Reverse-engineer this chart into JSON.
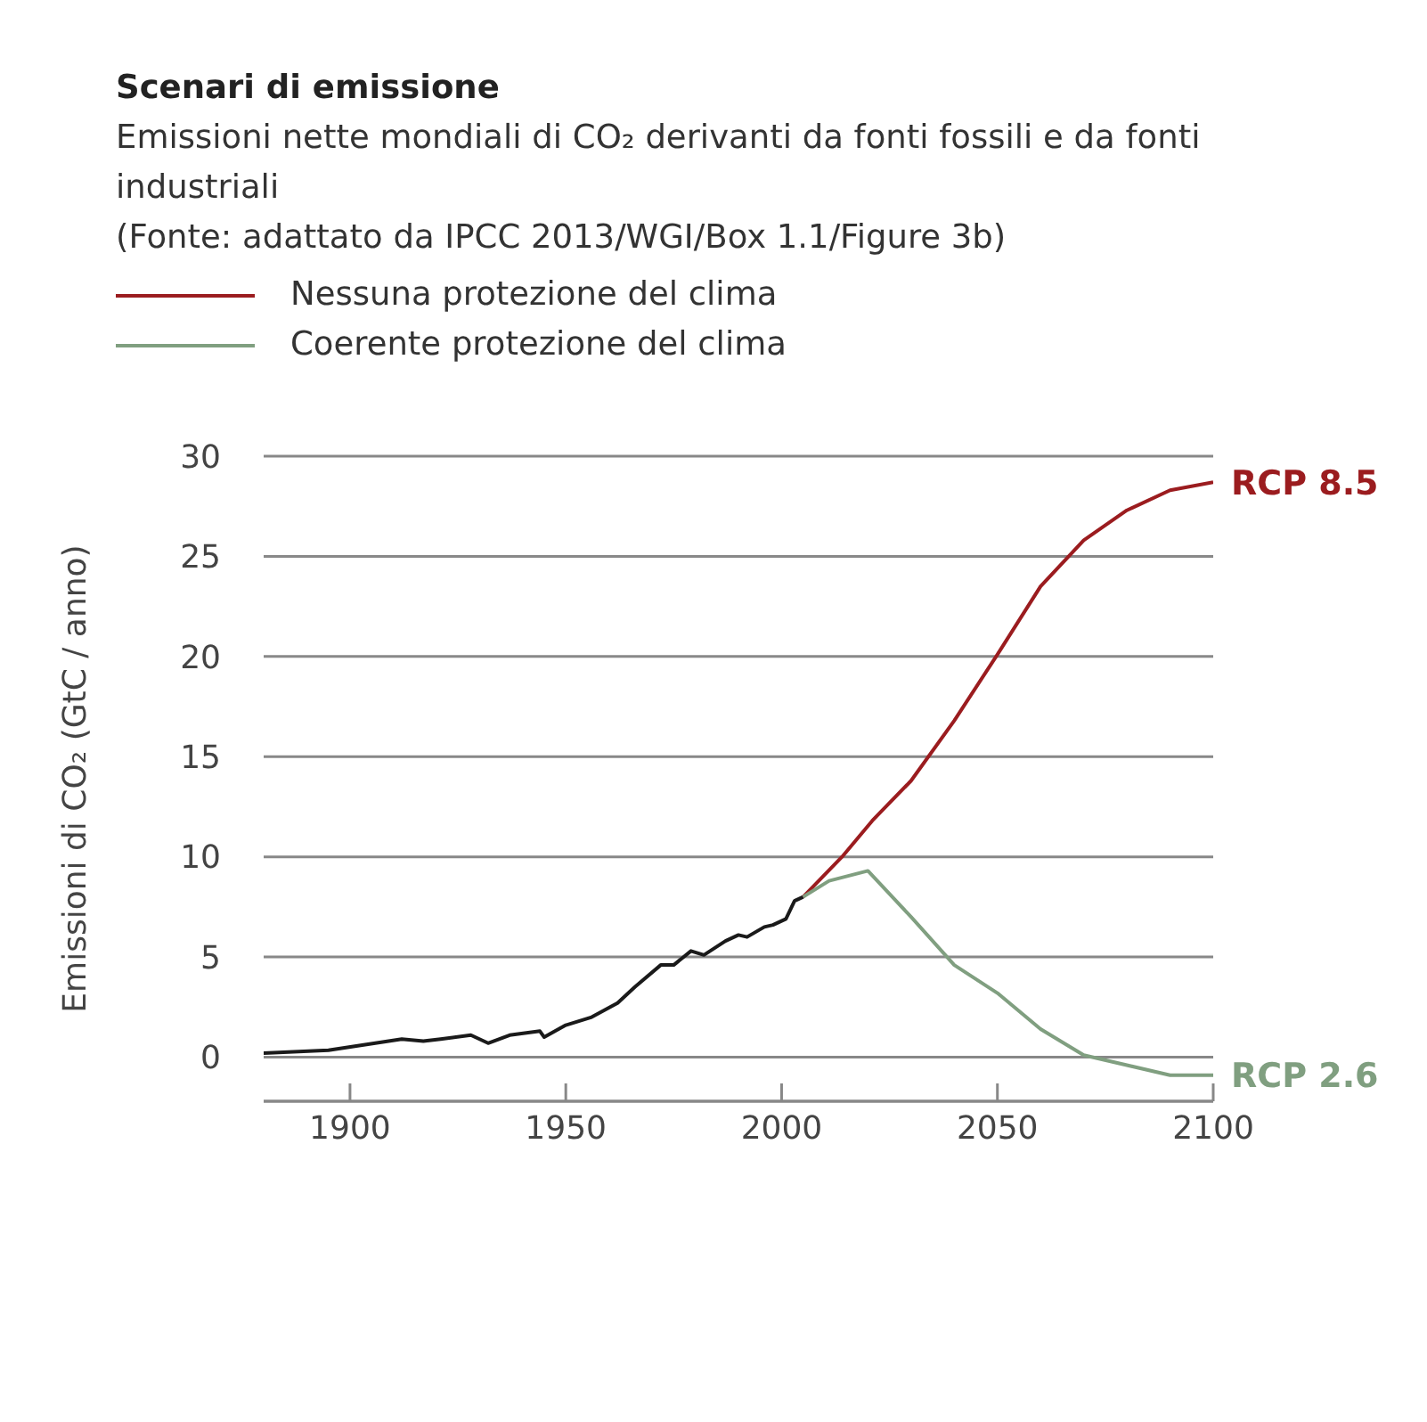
{
  "chart_data": {
    "type": "line",
    "title": "Scenari di emissione",
    "subtitle": "Emissioni nette mondiali di CO₂ derivanti da fonti fossili e da fonti industriali",
    "annotations": [
      "(Fonte: adattato da IPCC 2013/WGI/Box 1.1/Figure 3b)",
      {
        "text": "RCP 8.5",
        "x": 2100,
        "y": 28.7
      },
      {
        "text": "RCP 2.6",
        "x": 2100,
        "y": -0.9
      }
    ],
    "ylabel": "Emissioni di CO₂ (GtC / anno)",
    "xlim": [
      1880,
      2100
    ],
    "xticks": [
      1900,
      1950,
      2000,
      2050,
      2100
    ],
    "ylim": [
      -2.2,
      30
    ],
    "yticks": [
      0,
      5,
      10,
      15,
      20,
      25,
      30
    ],
    "grid": "y",
    "legend": "top left",
    "marker": "none",
    "line_style": "solid",
    "series": [
      {
        "color": "#1a1a1a",
        "x": [
          1880,
          1895,
          1912,
          1917,
          1921,
          1928,
          1932,
          1937,
          1944,
          1945,
          1950,
          1956,
          1962,
          1966,
          1972,
          1975,
          1979,
          1982,
          1987,
          1990,
          1992,
          1996,
          1998,
          2001,
          2003,
          2005
        ],
        "values": [
          0.2,
          0.35,
          0.9,
          0.8,
          0.9,
          1.1,
          0.7,
          1.1,
          1.3,
          1.0,
          1.6,
          2.0,
          2.7,
          3.5,
          4.6,
          4.6,
          5.3,
          5.1,
          5.8,
          6.1,
          6.0,
          6.5,
          6.6,
          6.9,
          7.8,
          8.0
        ]
      },
      {
        "name": "Nessuna protezione del clima",
        "color": "#9b1c1f",
        "x": [
          2005,
          2014,
          2021,
          2030,
          2040,
          2050,
          2060,
          2070,
          2080,
          2090,
          2100
        ],
        "values": [
          8.0,
          10.0,
          11.8,
          13.8,
          16.8,
          20.1,
          23.5,
          25.8,
          27.3,
          28.3,
          28.7
        ]
      },
      {
        "name": "Coerente protezione del clima",
        "color": "#809f80",
        "x": [
          2005,
          2011,
          2020,
          2030,
          2040,
          2050,
          2060,
          2070,
          2080,
          2090,
          2100
        ],
        "values": [
          8.0,
          8.8,
          9.3,
          7.0,
          4.6,
          3.2,
          1.4,
          0.1,
          -0.4,
          -0.9,
          -0.9
        ]
      }
    ]
  }
}
